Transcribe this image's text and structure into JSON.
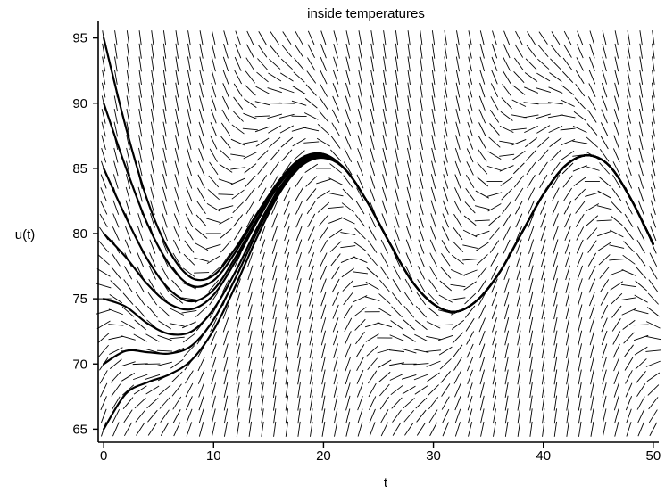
{
  "chart_data": {
    "type": "line",
    "title": "inside temperatures",
    "xlabel": "t",
    "ylabel": "u(t)",
    "xlim": [
      -0.5,
      50.5
    ],
    "ylim": [
      64,
      96
    ],
    "xticks": [
      0,
      10,
      20,
      30,
      40,
      50
    ],
    "yticks": [
      65,
      70,
      75,
      80,
      85,
      90,
      95
    ],
    "xtick_labels": [
      "0",
      "10",
      "20",
      "30",
      "40",
      "50"
    ],
    "ytick_labels": [
      "65",
      "70",
      "75",
      "80",
      "85",
      "90",
      "95"
    ],
    "grid": false,
    "legend": "none",
    "direction_field": {
      "description_free": true,
      "t_range": [
        0,
        50
      ],
      "u_range": [
        65,
        95
      ],
      "grid_cols": 46,
      "grid_rows": 31,
      "slope_model": {
        "k": 0.25,
        "outside_mean": 80,
        "outside_amplitude": 10,
        "period": 24,
        "peak_time": 16
      }
    },
    "series": [
      {
        "initial_u": 95,
        "x": [
          0,
          2,
          4,
          6,
          8,
          10,
          12,
          14,
          16,
          18,
          20,
          22,
          24,
          26,
          28,
          30,
          32,
          34,
          36,
          38,
          40,
          42,
          44,
          46,
          48,
          50
        ],
        "values": [
          95.0,
          88.2,
          82.5,
          78.6,
          76.6,
          76.8,
          78.9,
          81.6,
          84.1,
          85.8,
          86.1,
          84.9,
          82.4,
          79.3,
          76.4,
          74.6,
          74.0,
          74.9,
          77.0,
          80.0,
          83.0,
          85.2,
          86.0,
          85.2,
          82.6,
          79.2
        ]
      },
      {
        "initial_u": 90,
        "x": [
          0,
          2,
          4,
          6,
          8,
          10,
          12,
          14,
          16,
          18,
          20,
          22,
          24,
          26,
          28,
          30,
          32,
          34,
          36,
          38,
          40,
          42,
          44,
          46,
          48,
          50
        ],
        "values": [
          90.0,
          85.1,
          80.7,
          77.6,
          76.0,
          76.4,
          78.6,
          81.5,
          84.0,
          85.7,
          86.1,
          84.9,
          82.4,
          79.3,
          76.4,
          74.6,
          74.0,
          74.9,
          77.0,
          80.0,
          83.0,
          85.2,
          86.0,
          85.2,
          82.6,
          79.2
        ]
      },
      {
        "initial_u": 85,
        "x": [
          0,
          2,
          4,
          6,
          8,
          10,
          12,
          14,
          16,
          18,
          20,
          22,
          24,
          26,
          28,
          30,
          32,
          34,
          36,
          38,
          40,
          42,
          44,
          46,
          48,
          50
        ],
        "values": [
          85.0,
          81.3,
          78.0,
          75.7,
          74.8,
          75.7,
          78.2,
          81.2,
          83.9,
          85.6,
          86.0,
          84.9,
          82.4,
          79.3,
          76.4,
          74.6,
          74.0,
          74.9,
          77.0,
          80.0,
          83.0,
          85.2,
          86.0,
          85.2,
          82.6,
          79.2
        ]
      },
      {
        "initial_u": 80,
        "x": [
          0,
          2,
          4,
          6,
          8,
          10,
          12,
          14,
          16,
          18,
          20,
          22,
          24,
          26,
          28,
          30,
          32,
          34,
          36,
          38,
          40,
          42,
          44,
          46,
          48,
          50
        ],
        "values": [
          80.0,
          78.2,
          76.1,
          74.6,
          74.2,
          75.3,
          77.9,
          81.0,
          83.8,
          85.5,
          86.0,
          84.9,
          82.4,
          79.3,
          76.4,
          74.6,
          74.0,
          74.9,
          77.0,
          80.0,
          83.0,
          85.2,
          86.0,
          85.2,
          82.6,
          79.2
        ]
      },
      {
        "initial_u": 75,
        "x": [
          0,
          2,
          4,
          6,
          8,
          10,
          12,
          14,
          16,
          18,
          20,
          22,
          24,
          26,
          28,
          30,
          32,
          34,
          36,
          38,
          40,
          42,
          44,
          46,
          48,
          50
        ],
        "values": [
          75.0,
          74.4,
          73.1,
          72.3,
          72.5,
          74.2,
          77.1,
          80.5,
          83.5,
          85.4,
          85.9,
          84.9,
          82.4,
          79.3,
          76.4,
          74.6,
          74.0,
          74.9,
          77.0,
          80.0,
          83.0,
          85.2,
          86.0,
          85.2,
          82.6,
          79.2
        ]
      },
      {
        "initial_u": 70,
        "x": [
          0,
          2,
          4,
          6,
          8,
          10,
          12,
          14,
          16,
          18,
          20,
          22,
          24,
          26,
          28,
          30,
          32,
          34,
          36,
          38,
          40,
          42,
          44,
          46,
          48,
          50
        ],
        "values": [
          70.0,
          71.0,
          70.9,
          70.8,
          71.4,
          73.4,
          76.6,
          80.2,
          83.3,
          85.3,
          85.9,
          84.9,
          82.4,
          79.3,
          76.4,
          74.6,
          74.0,
          74.9,
          77.0,
          80.0,
          83.0,
          85.2,
          86.0,
          85.2,
          82.6,
          79.2
        ]
      },
      {
        "initial_u": 65,
        "x": [
          0,
          2,
          4,
          6,
          8,
          10,
          12,
          14,
          16,
          18,
          20,
          22,
          24,
          26,
          28,
          30,
          32,
          34,
          36,
          38,
          40,
          42,
          44,
          46,
          48,
          50
        ],
        "values": [
          65.0,
          67.7,
          68.6,
          69.2,
          70.3,
          72.6,
          76.0,
          79.8,
          83.1,
          85.2,
          85.8,
          84.9,
          82.4,
          79.3,
          76.4,
          74.6,
          74.0,
          74.9,
          77.0,
          80.0,
          83.0,
          85.2,
          86.0,
          85.2,
          82.6,
          79.2
        ]
      }
    ]
  }
}
